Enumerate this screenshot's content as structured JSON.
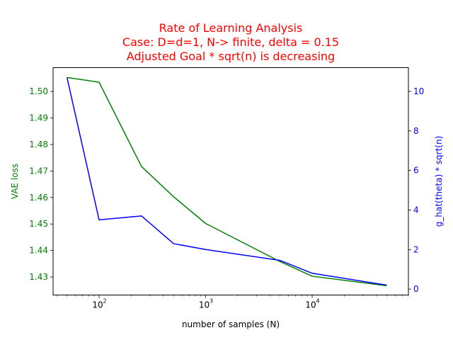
{
  "chart_data": {
    "type": "line",
    "title": [
      "Rate of Learning Analysis",
      "Case: D=d=1, N-> finite, delta = 0.15",
      "Adjusted Goal * sqrt(n) is decreasing"
    ],
    "xlabel": "number of samples (N)",
    "ylabel_left": "VAE loss",
    "ylabel_right": "g_hat(theta) * sqrt(n)",
    "x_scale": "log",
    "xlim": [
      37,
      80000
    ],
    "ylim_left": [
      1.4232,
      1.509
    ],
    "ylim_right": [
      -0.3,
      11.2
    ],
    "x_ticks": [
      100,
      1000,
      10000
    ],
    "x_tick_labels": [
      "10",
      "10",
      "10"
    ],
    "x_tick_exponents": [
      "2",
      "3",
      "4"
    ],
    "y_ticks_left": [
      1.43,
      1.44,
      1.45,
      1.46,
      1.47,
      1.48,
      1.49,
      1.5
    ],
    "y_tick_labels_left": [
      "1.43",
      "1.44",
      "1.45",
      "1.46",
      "1.47",
      "1.48",
      "1.49",
      "1.50"
    ],
    "y_ticks_right": [
      0,
      2,
      4,
      6,
      8,
      10
    ],
    "y_tick_labels_right": [
      "0",
      "2",
      "4",
      "6",
      "8",
      "10"
    ],
    "grid": false,
    "series": [
      {
        "axis": "left",
        "color": "#008000",
        "x": [
          50,
          100,
          250,
          500,
          1000,
          5000,
          10000,
          50000
        ],
        "values": [
          1.5053,
          1.5035,
          1.4717,
          1.4603,
          1.4502,
          1.4358,
          1.4303,
          1.4267
        ]
      },
      {
        "axis": "right",
        "color": "#0000ff",
        "x": [
          50,
          100,
          250,
          500,
          1000,
          5000,
          10000,
          50000
        ],
        "values": [
          10.7,
          3.5,
          3.7,
          2.3,
          2.0,
          1.45,
          0.8,
          0.2
        ]
      }
    ],
    "colors": {
      "title": "#ff0000",
      "left_axis": "#008000",
      "right_axis": "#0000ff",
      "frame": "#000000"
    }
  }
}
